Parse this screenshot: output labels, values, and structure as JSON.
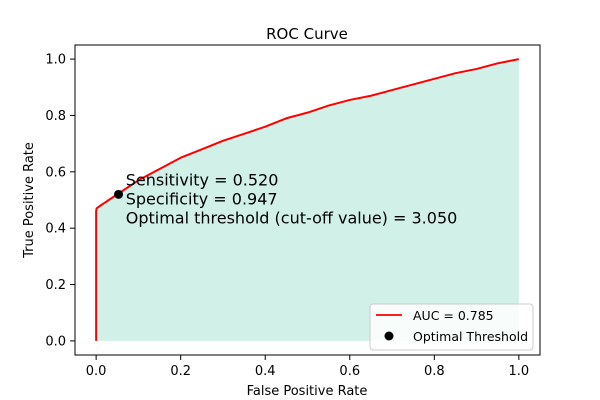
{
  "chart_data": {
    "type": "line",
    "title": "ROC Curve",
    "xlabel": "False Positive Rate",
    "ylabel": "True Positive Rate",
    "xlim": [
      -0.05,
      1.05
    ],
    "ylim": [
      -0.05,
      1.05
    ],
    "xticks": [
      "0.0",
      "0.2",
      "0.4",
      "0.6",
      "0.8",
      "1.0"
    ],
    "yticks": [
      "0.0",
      "0.2",
      "0.4",
      "0.6",
      "0.8",
      "1.0"
    ],
    "grid": false,
    "legend_position": "bottom-right",
    "series": [
      {
        "name": "AUC = 0.785",
        "type": "line",
        "color": "#ff0000",
        "fill_color": "#d0f0e8",
        "x": [
          0.0,
          0.0,
          0.001,
          0.01,
          0.02,
          0.03,
          0.05,
          0.08,
          0.1,
          0.15,
          0.2,
          0.25,
          0.3,
          0.35,
          0.4,
          0.45,
          0.5,
          0.55,
          0.6,
          0.65,
          0.7,
          0.75,
          0.8,
          0.85,
          0.9,
          0.95,
          1.0
        ],
        "y": [
          0.0,
          0.46,
          0.47,
          0.48,
          0.49,
          0.5,
          0.52,
          0.55,
          0.57,
          0.61,
          0.65,
          0.68,
          0.71,
          0.735,
          0.76,
          0.79,
          0.81,
          0.835,
          0.855,
          0.87,
          0.89,
          0.91,
          0.93,
          0.95,
          0.965,
          0.985,
          1.0
        ]
      },
      {
        "name": "Optimal Threshold",
        "type": "scatter",
        "color": "#000000",
        "x": [
          0.053
        ],
        "y": [
          0.52
        ]
      }
    ],
    "annotation": {
      "lines": [
        "Sensitivity = 0.520",
        "Specificity = 0.947",
        "Optimal threshold (cut-off value) = 3.050"
      ],
      "x": 0.07,
      "y": 0.52
    }
  }
}
